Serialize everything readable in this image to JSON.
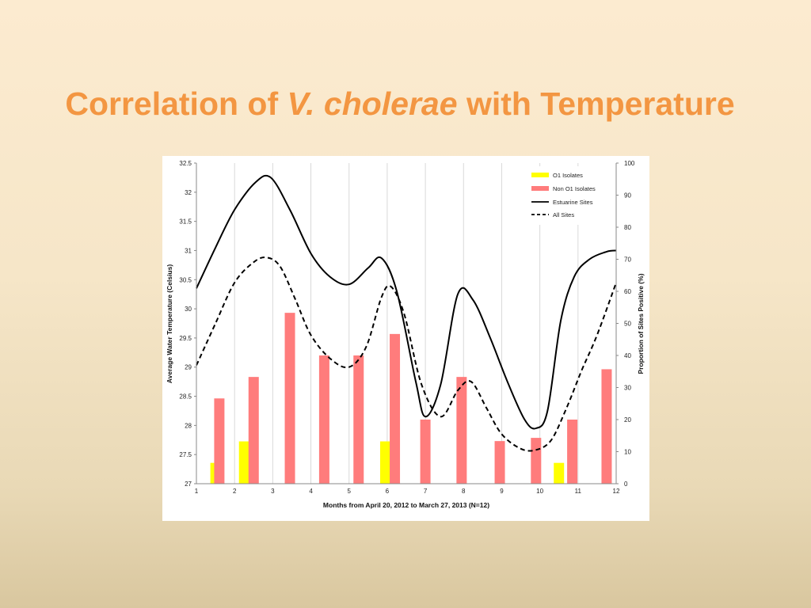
{
  "slide": {
    "title_part1": "Correlation of ",
    "title_italic": "V. cholerae",
    "title_part2": " with Temperature"
  },
  "colors": {
    "title": "#f39642",
    "o1": "#ffff00",
    "non_o1": "#ff7c7c",
    "lines": "#000000"
  },
  "chart_data": {
    "type": "bar",
    "xlabel": "Months from April 20, 2012 to March 27, 2013 (N=12)",
    "ylabel": "Average Water Temperature (Celsius)",
    "y2label": "Proportion of Sites Positive (%)",
    "xlim": [
      1,
      12
    ],
    "ylim": [
      27,
      32.5
    ],
    "y2lim": [
      0,
      100
    ],
    "x_ticks": [
      "1",
      "2",
      "3",
      "4",
      "5",
      "6",
      "7",
      "8",
      "9",
      "10",
      "11",
      "12"
    ],
    "y_ticks": [
      "27",
      "27.5",
      "28",
      "28.5",
      "29",
      "29.5",
      "30",
      "30.5",
      "31",
      "31.5",
      "32",
      "32.5"
    ],
    "y2_ticks": [
      "0",
      "10",
      "20",
      "30",
      "40",
      "50",
      "60",
      "70",
      "80",
      "90",
      "100"
    ],
    "grid": "vertical",
    "legend_position": "top-right",
    "series": [
      {
        "name": "O1 Isolates",
        "kind": "bar",
        "axis": "right",
        "x": [
          1.5,
          2.25,
          5.95,
          10.5
        ],
        "values": [
          6.5,
          13.2,
          13.2,
          6.5
        ]
      },
      {
        "name": "Non O1 Isolates",
        "kind": "bar",
        "axis": "right",
        "x": [
          1.6,
          2.5,
          3.45,
          4.35,
          5.25,
          6.2,
          7.0,
          7.95,
          8.95,
          9.9,
          10.85,
          11.75
        ],
        "values": [
          26.6,
          33.3,
          53.3,
          40.0,
          40.0,
          46.7,
          20.0,
          33.3,
          13.3,
          14.3,
          20.0,
          35.7
        ]
      },
      {
        "name": "Estuarine Sites",
        "kind": "line",
        "style": "solid",
        "axis": "left",
        "x": [
          1.0,
          1.5,
          2.0,
          2.55,
          2.95,
          3.45,
          4.0,
          4.5,
          5.0,
          5.5,
          5.85,
          6.25,
          6.75,
          7.0,
          7.4,
          7.85,
          8.25,
          8.7,
          9.15,
          9.6,
          9.9,
          10.2,
          10.55,
          10.9,
          11.3,
          11.75,
          12.0
        ],
        "values": [
          30.35,
          31.05,
          31.7,
          32.17,
          32.25,
          31.7,
          30.95,
          30.55,
          30.42,
          30.7,
          30.87,
          30.3,
          28.75,
          28.15,
          28.7,
          30.25,
          30.15,
          29.5,
          28.75,
          28.1,
          27.95,
          28.25,
          29.8,
          30.55,
          30.85,
          30.98,
          31.0
        ]
      },
      {
        "name": "All Sites",
        "kind": "line",
        "style": "dashed",
        "axis": "left",
        "x": [
          1.0,
          1.5,
          2.0,
          2.5,
          2.85,
          3.2,
          3.6,
          4.0,
          4.5,
          5.0,
          5.45,
          5.85,
          6.1,
          6.45,
          6.9,
          7.4,
          7.85,
          8.2,
          8.6,
          9.0,
          9.5,
          9.9,
          10.3,
          10.7,
          11.1,
          11.5,
          12.0
        ],
        "values": [
          29.03,
          29.75,
          30.45,
          30.8,
          30.88,
          30.72,
          30.15,
          29.55,
          29.15,
          29.0,
          29.35,
          30.2,
          30.38,
          29.9,
          28.7,
          28.15,
          28.6,
          28.75,
          28.3,
          27.85,
          27.6,
          27.58,
          27.75,
          28.3,
          28.95,
          29.55,
          30.45
        ]
      }
    ]
  }
}
